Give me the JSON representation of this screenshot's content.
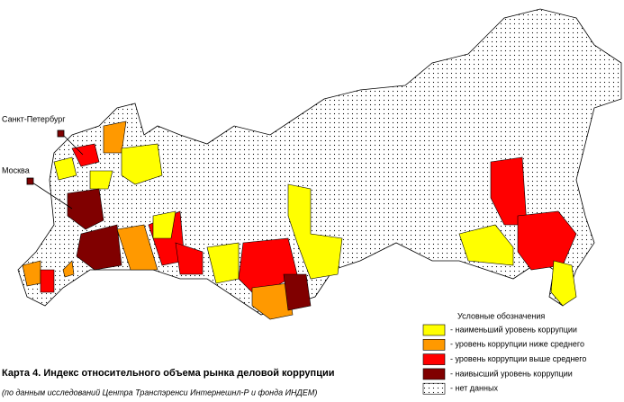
{
  "cities": [
    {
      "label": "Санкт-Петербург"
    },
    {
      "label": "Москва"
    }
  ],
  "legend": {
    "title": "Условные обозначения",
    "items": [
      {
        "label": "-  наименьший уровень коррупции",
        "color": "#ffff00"
      },
      {
        "label": "-  уровень коррупции ниже среднего",
        "color": "#ff9900"
      },
      {
        "label": "-  уровень коррупции выше среднего",
        "color": "#ff0000"
      },
      {
        "label": "-  наивысший уровень коррупции",
        "color": "#800000"
      },
      {
        "label": "-  нет данных",
        "color": "#ffffff"
      }
    ]
  },
  "caption": {
    "title": "Карта 4. Индекс относительного объема рынка деловой коррупции",
    "source": "(по данным исследований Центра Транспэренси Интернешнл-Р и фонда ИНДЕМ)"
  }
}
